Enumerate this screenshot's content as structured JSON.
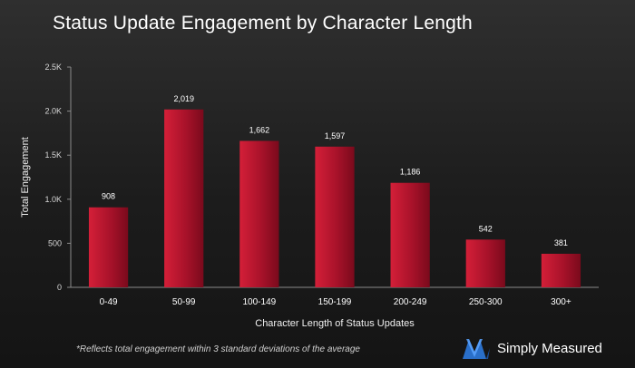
{
  "chart_data": {
    "type": "bar",
    "title": "Status Update Engagement by Character Length",
    "xlabel": "Character Length of Status Updates",
    "ylabel": "Total Engagement",
    "categories": [
      "0-49",
      "50-99",
      "100-149",
      "150-199",
      "200-249",
      "250-300",
      "300+"
    ],
    "values": [
      908,
      2019,
      1662,
      1597,
      1186,
      542,
      381
    ],
    "value_labels": [
      "908",
      "2,019",
      "1,662",
      "1,597",
      "1,186",
      "542",
      "381"
    ],
    "ylim": [
      0,
      2500
    ],
    "yticks": [
      0,
      500,
      1000,
      1500,
      2000,
      2500
    ],
    "ytick_labels": [
      "0",
      "500",
      "1.0K",
      "1.5K",
      "2.0K",
      "2.5K"
    ],
    "grid": false,
    "bar_color": "#b0142a"
  },
  "footnote": "*Reflects total engagement within 3 standard deviations of the average",
  "brand": {
    "name": "Simply Measured",
    "logo_icon": "simply-measured-logo-icon"
  }
}
